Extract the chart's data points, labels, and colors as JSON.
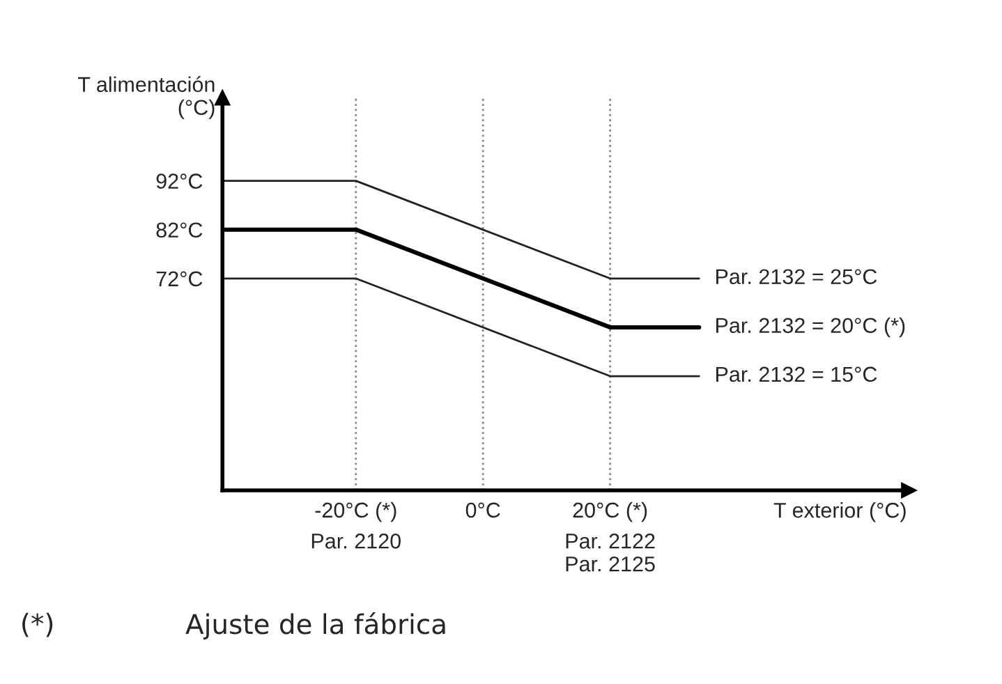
{
  "chart_data": {
    "type": "line",
    "xlabel": "T exterior (°C)",
    "ylabel": "T alimentación\n(°C)",
    "xlim": [
      -41,
      67
    ],
    "ylim": [
      28.6,
      109
    ],
    "xticks": [
      {
        "value": -20,
        "label": "-20°C (*)"
      },
      {
        "value": 0,
        "label": "0°C"
      },
      {
        "value": 20,
        "label": "20°C (*)"
      }
    ],
    "yticks": [
      {
        "value": 72,
        "label": "72°C"
      },
      {
        "value": 82,
        "label": "82°C"
      },
      {
        "value": 92,
        "label": "92°C"
      }
    ],
    "grid": "x",
    "line_style": "solid",
    "marker": "none",
    "series": [
      {
        "name": "Par. 2132 = 25°C",
        "color": "#222222",
        "x": [
          -41,
          -20,
          20,
          34
        ],
        "values": [
          92,
          92,
          72,
          72
        ]
      },
      {
        "name": "Par. 2132 = 20°C (*)",
        "color": "#000000",
        "x": [
          -41,
          -20,
          20,
          34
        ],
        "values": [
          82,
          82,
          62,
          62
        ]
      },
      {
        "name": "Par. 2132 = 15°C",
        "color": "#222222",
        "x": [
          -41,
          -20,
          20,
          34
        ],
        "values": [
          72,
          72,
          52,
          52
        ]
      }
    ],
    "annotations": [
      "(*)",
      "Ajuste de la fábrica",
      "Par. 2120",
      "Par. 2122\nPar. 2125"
    ]
  }
}
